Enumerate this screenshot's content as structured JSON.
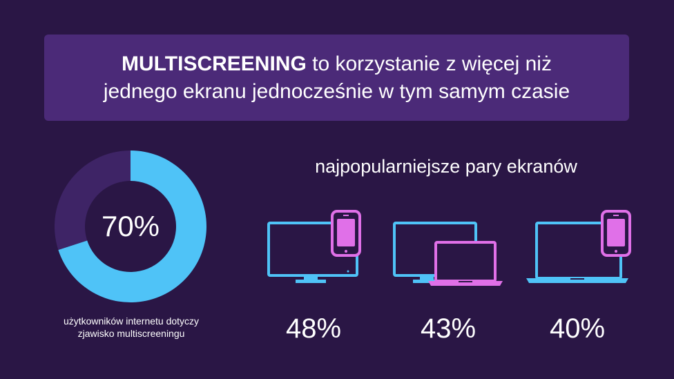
{
  "banner": {
    "strong": "MULTISCREENING",
    "line1_rest": " to korzystanie z więcej niż",
    "line2": "jednego ekranu jednocześnie w tym samym czasie"
  },
  "colors": {
    "background": "#2a1645",
    "banner": "#4b2a78",
    "blue": "#4fc3f7",
    "pink": "#e070e8",
    "donut_rest": "#3e2466"
  },
  "chart_data": [
    {
      "type": "pie",
      "variant": "donut",
      "values": [
        70,
        30
      ],
      "label": "70%",
      "caption_line1": "użytkowników internetu dotyczy",
      "caption_line2": "zjawisko multiscreeningu"
    },
    {
      "type": "bar",
      "title": "najpopularniejsze pary ekranów",
      "pairs": [
        {
          "icons": [
            "tv-icon",
            "phone-icon"
          ],
          "value": 48,
          "label": "48%"
        },
        {
          "icons": [
            "tv-icon",
            "laptop-icon"
          ],
          "value": 43,
          "label": "43%"
        },
        {
          "icons": [
            "laptop-icon",
            "phone-icon"
          ],
          "value": 40,
          "label": "40%"
        }
      ]
    }
  ]
}
